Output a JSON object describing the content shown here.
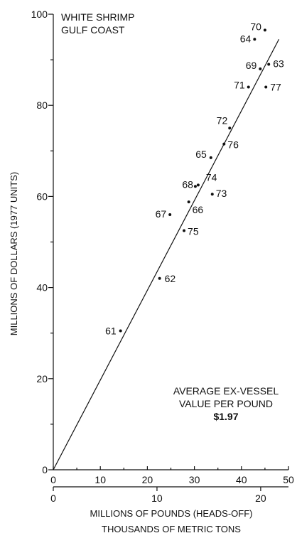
{
  "chart_data": {
    "type": "scatter",
    "title_lines": [
      "WHITE SHRIMP",
      "GULF COAST"
    ],
    "xlabel": "MILLIONS OF POUNDS (HEADS-OFF)",
    "x2label": "THOUSANDS OF METRIC TONS",
    "ylabel": "MILLIONS OF DOLLARS (1977 UNITS)",
    "xlim": [
      0,
      50
    ],
    "ylim": [
      0,
      100
    ],
    "x_ticks": [
      0,
      10,
      20,
      30,
      40,
      50
    ],
    "y_ticks": [
      0,
      20,
      40,
      60,
      80,
      100
    ],
    "x2lim": [
      0,
      22.68
    ],
    "x2_ticks": [
      0,
      10,
      20
    ],
    "annotation_lines": [
      "AVERAGE EX-VESSEL",
      "VALUE PER POUND",
      "$1.97"
    ],
    "fit_line": {
      "slope": 1.97,
      "intercept": 0
    },
    "points": [
      {
        "label": "61",
        "x": 14.3,
        "y": 30.5
      },
      {
        "label": "62",
        "x": 22.6,
        "y": 42.0
      },
      {
        "label": "63",
        "x": 45.8,
        "y": 89.0
      },
      {
        "label": "64",
        "x": 42.8,
        "y": 94.5
      },
      {
        "label": "65",
        "x": 33.5,
        "y": 68.5
      },
      {
        "label": "66",
        "x": 28.8,
        "y": 58.8
      },
      {
        "label": "67",
        "x": 24.8,
        "y": 56.0
      },
      {
        "label": "68",
        "x": 30.2,
        "y": 62.2
      },
      {
        "label": "69",
        "x": 44.0,
        "y": 88.0
      },
      {
        "label": "70",
        "x": 45.0,
        "y": 96.5
      },
      {
        "label": "71",
        "x": 41.5,
        "y": 84.0
      },
      {
        "label": "72",
        "x": 37.5,
        "y": 75.0
      },
      {
        "label": "73",
        "x": 33.8,
        "y": 60.5
      },
      {
        "label": "74",
        "x": 30.8,
        "y": 62.5
      },
      {
        "label": "75",
        "x": 27.8,
        "y": 52.5
      },
      {
        "label": "76",
        "x": 36.3,
        "y": 71.5
      },
      {
        "label": "77",
        "x": 45.2,
        "y": 84.0
      }
    ]
  }
}
